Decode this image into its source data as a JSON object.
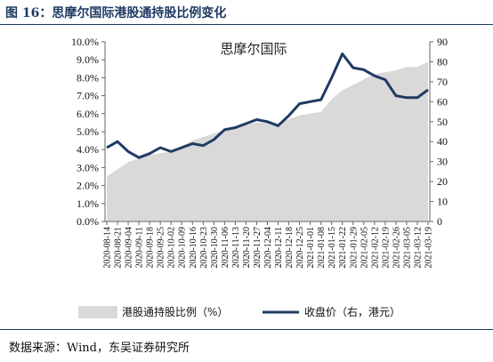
{
  "figure": {
    "title": "图 16：思摩尔国际港股通持股比例变化",
    "source": "数据来源：Wind，东吴证券研究所"
  },
  "colors": {
    "area": "#d9d9d9",
    "line": "#1f3a64",
    "title": "#1f3a64"
  },
  "chart_data": {
    "type": "area",
    "annotation": "思摩尔国际",
    "categories": [
      "2020-08-14",
      "2020-08-21",
      "2020-09-04",
      "2020-09-11",
      "2020-09-18",
      "2020-09-25",
      "2020-10-02",
      "2020-10-09",
      "2020-10-16",
      "2020-10-23",
      "2020-10-30",
      "2020-11-06",
      "2020-11-13",
      "2020-11-20",
      "2020-11-27",
      "2020-12-04",
      "2020-12-11",
      "2020-12-18",
      "2020-12-25",
      "2021-01-01",
      "2021-01-08",
      "2021-01-15",
      "2021-01-22",
      "2021-01-29",
      "2021-02-05",
      "2021-02-12",
      "2021-02-19",
      "2021-02-26",
      "2021-03-05",
      "2021-03-12",
      "2021-03-19"
    ],
    "y_left": {
      "ylim": [
        0,
        10
      ],
      "ticks": [
        "0.0%",
        "1.0%",
        "2.0%",
        "3.0%",
        "4.0%",
        "5.0%",
        "6.0%",
        "7.0%",
        "8.0%",
        "9.0%",
        "10.0%"
      ]
    },
    "y_right": {
      "ylim": [
        0,
        90
      ],
      "ticks": [
        "0",
        "10",
        "20",
        "30",
        "40",
        "50",
        "60",
        "70",
        "80",
        "90"
      ]
    },
    "series": [
      {
        "name": "港股通持股比例（%）",
        "type": "area",
        "axis": "left",
        "values": [
          2.5,
          2.9,
          3.3,
          3.5,
          3.7,
          3.8,
          3.9,
          4.2,
          4.5,
          4.7,
          4.9,
          5.1,
          5.3,
          5.4,
          5.5,
          5.5,
          5.4,
          5.7,
          5.9,
          6.0,
          6.1,
          6.8,
          7.3,
          7.6,
          7.9,
          8.2,
          8.3,
          8.4,
          8.6,
          8.6,
          8.9
        ]
      },
      {
        "name": "收盘价（右，港元）",
        "type": "line",
        "axis": "right",
        "values": [
          37,
          40,
          35,
          32,
          34,
          37,
          35,
          37,
          39,
          38,
          41,
          46,
          47,
          49,
          51,
          50,
          48,
          53,
          59,
          60,
          61,
          72,
          84,
          77,
          76,
          73,
          71,
          63,
          62,
          62,
          66
        ]
      }
    ],
    "legend": {
      "position": "bottom"
    }
  }
}
